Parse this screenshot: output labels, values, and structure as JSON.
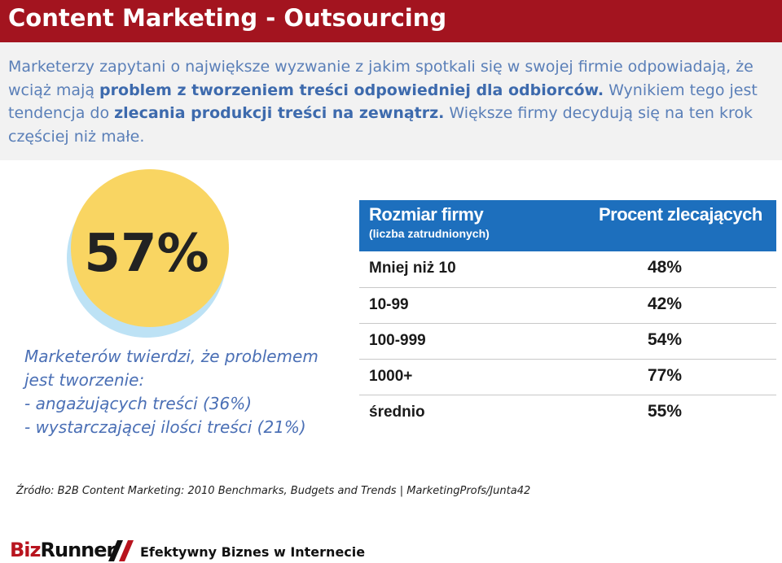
{
  "slide": {
    "title": "Content Marketing - Outsourcing"
  },
  "intro": {
    "seg1": "Marketerzy zapytani o największe wyzwanie z jakim spotkali się w swojej firmie odpowiadają, że wciąż mają ",
    "seg2": "problem z tworzeniem treści odpowiedniej dla odbiorców.",
    "seg3": " Wynikiem tego jest tendencja do ",
    "seg4": "zlecania produkcji treści na zewnątrz.",
    "seg5": " Większe firmy decydują się na ten krok częściej niż małe."
  },
  "stat": {
    "value": "57%",
    "colors": {
      "fill": "#f9d562",
      "shadow": "#bde2f5",
      "text": "#222222"
    }
  },
  "quote": {
    "lines": [
      "Marketerów twierdzi, że problemem",
      "jest tworzenie:",
      "- angażujących treści (36%)",
      "- wystarczającej ilości treści (21%)"
    ]
  },
  "table": {
    "header": {
      "col1": "Rozmiar firmy",
      "col1_sub": "(liczba zatrudnionych)",
      "col2": "Procent zlecających"
    },
    "rows": [
      {
        "size": "Mniej niż 10",
        "percent": "48%"
      },
      {
        "size": "10-99",
        "percent": "42%"
      },
      {
        "size": "100-999",
        "percent": "54%"
      },
      {
        "size": "1000+",
        "percent": "77%"
      },
      {
        "size": "średnio",
        "percent": "55%"
      }
    ],
    "colors": {
      "header_bg": "#1d6fbd"
    }
  },
  "source": "Źródło: B2B Content Marketing: 2010 Benchmarks, Budgets and Trends | MarketingProfs/Junta42",
  "footer": {
    "logo_part1": "Biz",
    "logo_part2": "Runner",
    "tagline": "Efektywny Biznes w Internecie"
  },
  "colors": {
    "title_bg": "#a3141f",
    "intro_bg": "#f2f2f2",
    "intro_text": "#5a7fb8",
    "quote_text": "#4a6fb5"
  }
}
